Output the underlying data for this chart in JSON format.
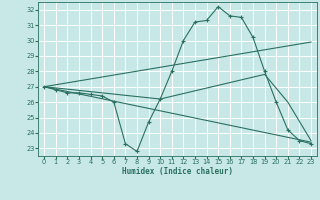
{
  "bg_color": "#c8e8e8",
  "grid_color": "#ffffff",
  "line_color": "#2a7060",
  "xlabel": "Humidex (Indice chaleur)",
  "xlim": [
    -0.5,
    23.5
  ],
  "ylim": [
    22.5,
    32.5
  ],
  "xticks": [
    0,
    1,
    2,
    3,
    4,
    5,
    6,
    7,
    8,
    9,
    10,
    11,
    12,
    13,
    14,
    15,
    16,
    17,
    18,
    19,
    20,
    21,
    22,
    23
  ],
  "yticks": [
    23,
    24,
    25,
    26,
    27,
    28,
    29,
    30,
    31,
    32
  ],
  "main_x": [
    0,
    1,
    2,
    3,
    4,
    5,
    6,
    7,
    8,
    9,
    10,
    11,
    12,
    13,
    14,
    15,
    16,
    17,
    18,
    19,
    20,
    21,
    22,
    23
  ],
  "main_y": [
    27.0,
    26.8,
    26.6,
    26.6,
    26.5,
    26.4,
    26.0,
    23.3,
    22.8,
    24.7,
    26.2,
    28.0,
    30.0,
    31.2,
    31.3,
    32.2,
    31.6,
    31.5,
    30.2,
    28.0,
    26.0,
    24.2,
    23.5,
    23.3
  ],
  "line2_x": [
    0,
    23
  ],
  "line2_y": [
    27.0,
    29.9
  ],
  "line3_x": [
    0,
    10,
    19,
    21,
    23
  ],
  "line3_y": [
    27.0,
    26.2,
    27.8,
    26.0,
    23.5
  ],
  "line4_x": [
    0,
    23
  ],
  "line4_y": [
    27.0,
    23.4
  ]
}
